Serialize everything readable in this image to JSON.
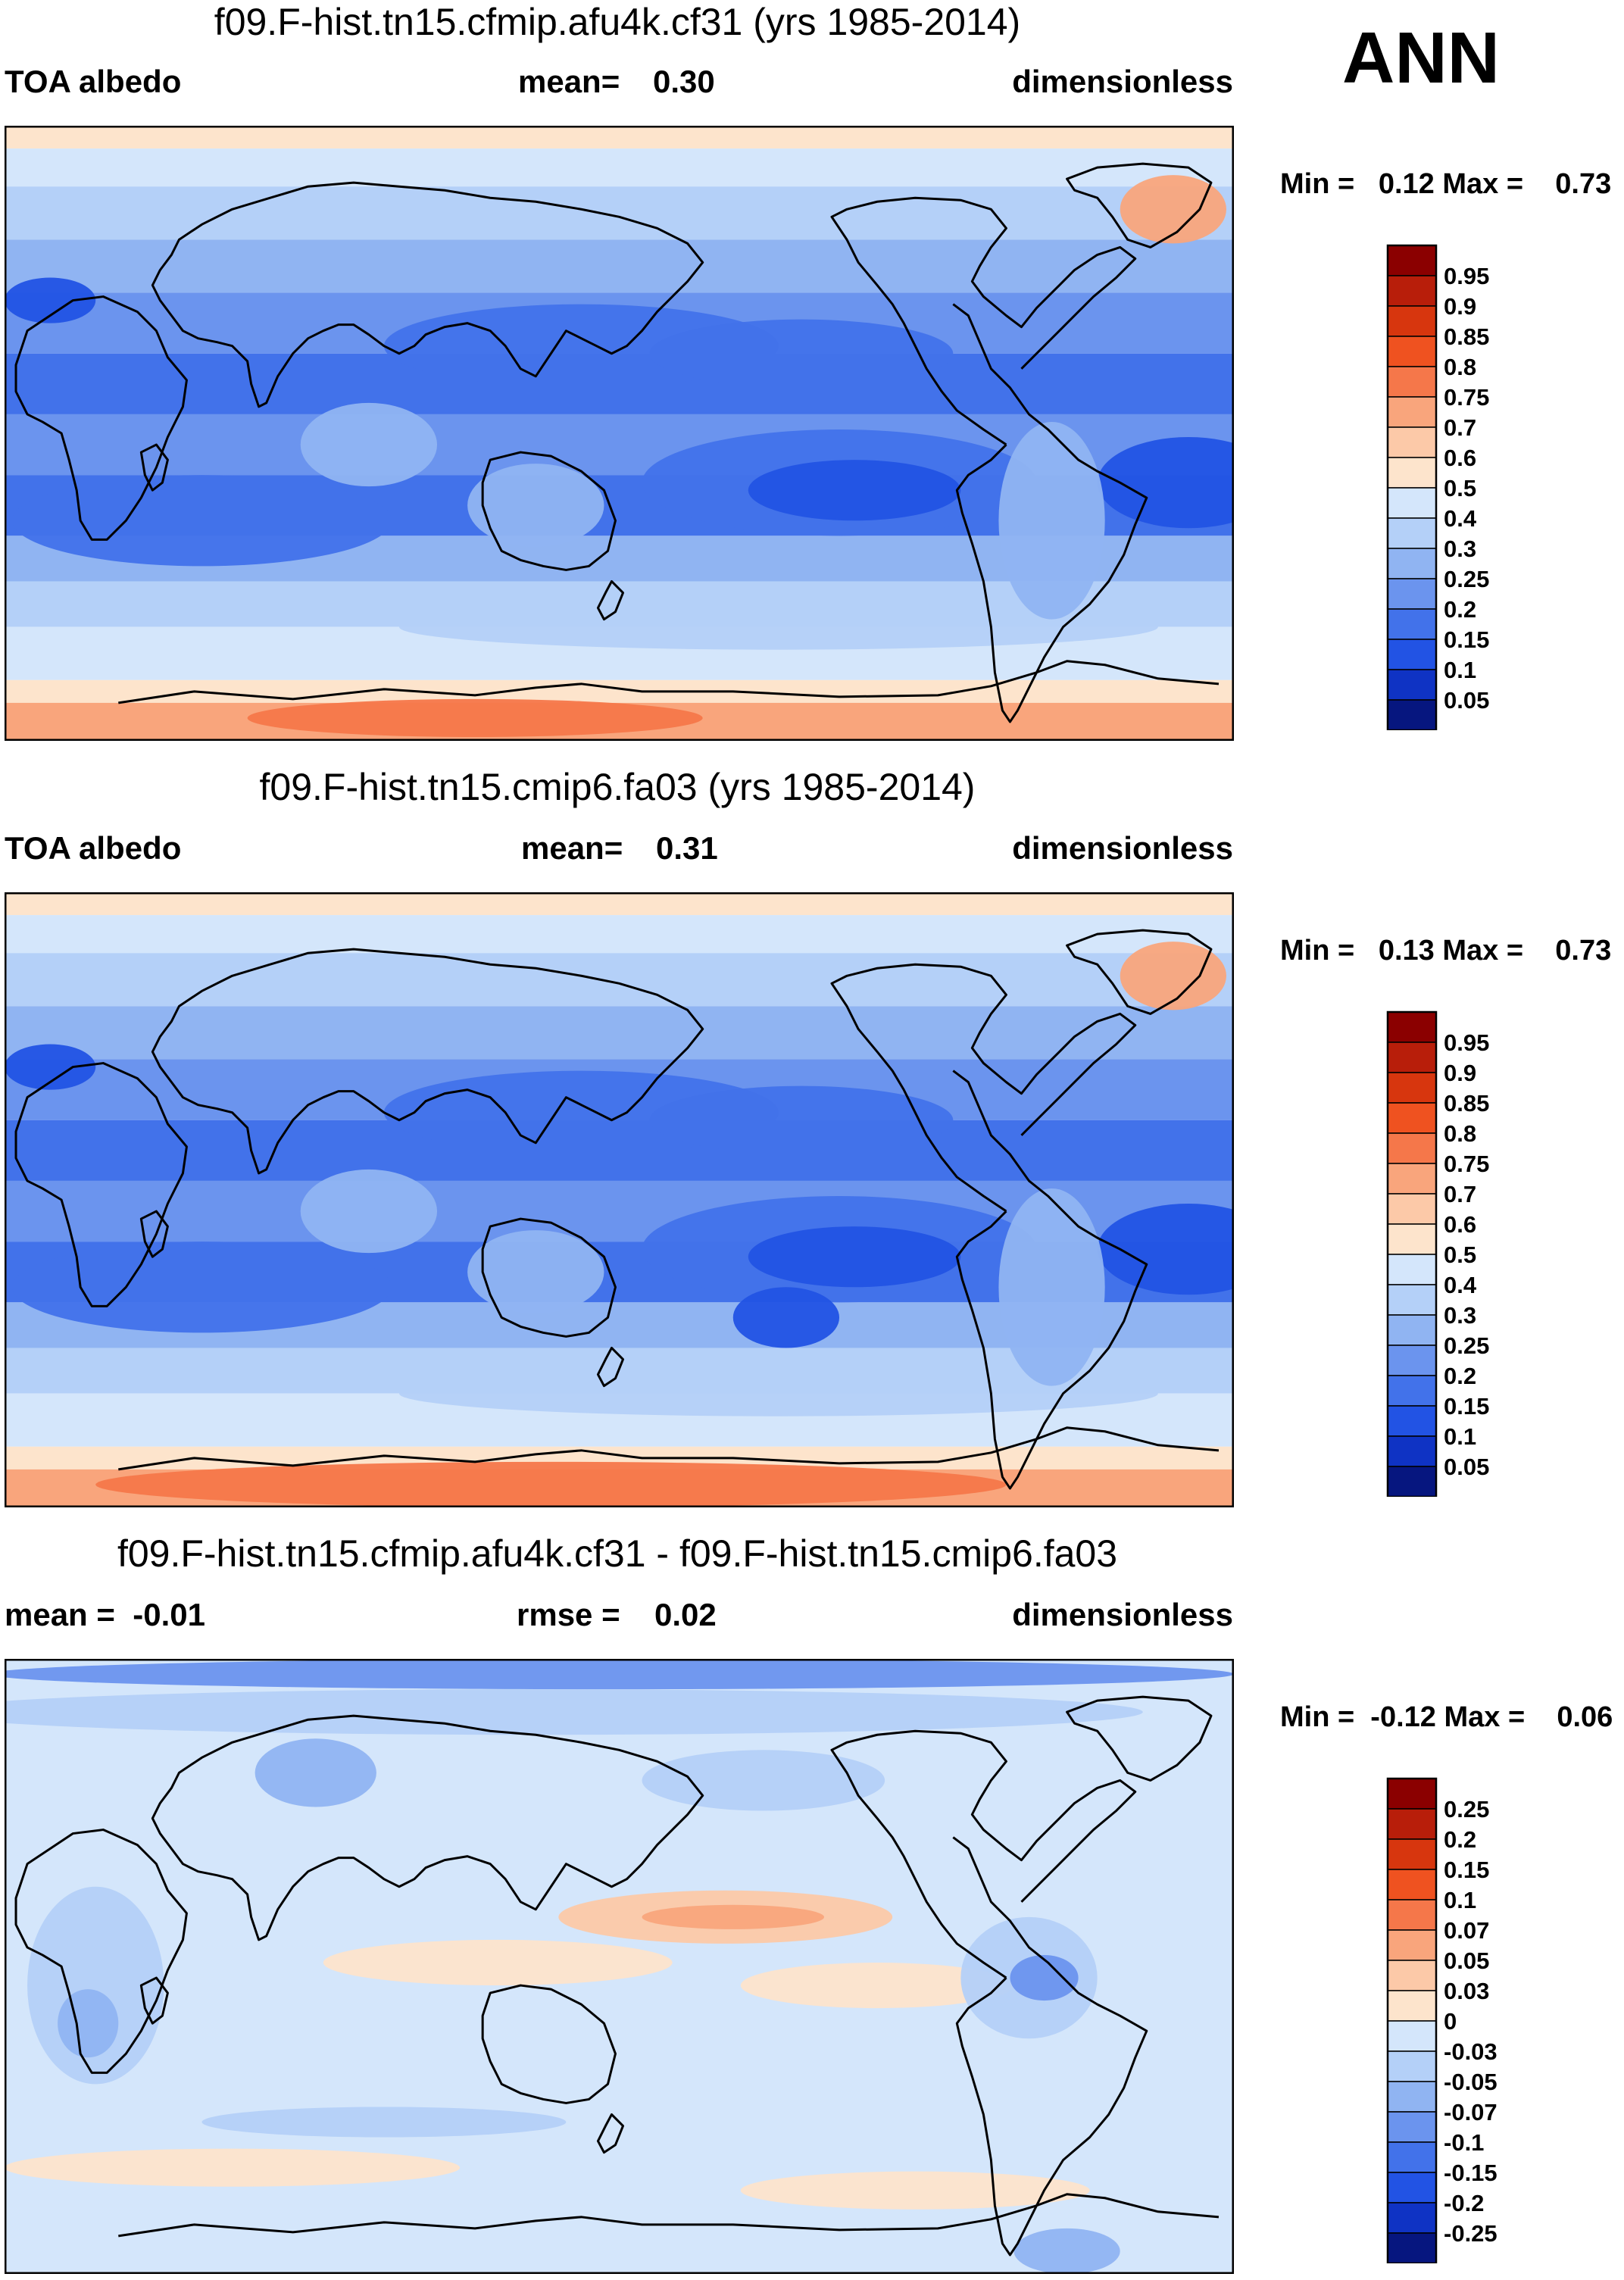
{
  "season": "ANN",
  "panels": [
    {
      "title": "f09.F-hist.tn15.cfmip.afu4k.cf31 (yrs 1985-2014)",
      "header_left": "TOA albedo",
      "header_center_label": "mean=",
      "header_center_value": "0.30",
      "header_right": "dimensionless",
      "minmax": "Min =   0.12 Max =    0.73",
      "palette": "abs",
      "colorbar": {
        "labels": [
          "0.95",
          "0.9",
          "0.85",
          "0.8",
          "0.75",
          "0.7",
          "0.6",
          "0.5",
          "0.4",
          "0.3",
          "0.25",
          "0.2",
          "0.15",
          "0.1",
          "0.05"
        ],
        "colors": [
          "#8b0000",
          "#b81e0a",
          "#d7360e",
          "#ef5220",
          "#f5774a",
          "#f9a57c",
          "#fcc9a8",
          "#fde4cc",
          "#d4e6fb",
          "#b4d0f8",
          "#90b4f2",
          "#6b94ee",
          "#4272ea",
          "#2253e4",
          "#0f33c4",
          "#06167f"
        ]
      }
    },
    {
      "title": "f09.F-hist.tn15.cmip6.fa03 (yrs 1985-2014)",
      "header_left": "TOA albedo",
      "header_center_label": "mean=",
      "header_center_value": "0.31",
      "header_right": "dimensionless",
      "minmax": "Min =   0.13 Max =    0.73",
      "palette": "abs",
      "colorbar": {
        "labels": [
          "0.95",
          "0.9",
          "0.85",
          "0.8",
          "0.75",
          "0.7",
          "0.6",
          "0.5",
          "0.4",
          "0.3",
          "0.25",
          "0.2",
          "0.15",
          "0.1",
          "0.05"
        ],
        "colors": [
          "#8b0000",
          "#b81e0a",
          "#d7360e",
          "#ef5220",
          "#f5774a",
          "#f9a57c",
          "#fcc9a8",
          "#fde4cc",
          "#d4e6fb",
          "#b4d0f8",
          "#90b4f2",
          "#6b94ee",
          "#4272ea",
          "#2253e4",
          "#0f33c4",
          "#06167f"
        ]
      }
    },
    {
      "title": "f09.F-hist.tn15.cfmip.afu4k.cf31 - f09.F-hist.tn15.cmip6.fa03",
      "header_left": "mean =  -0.01",
      "header_center_label": "rmse =",
      "header_center_value": "0.02",
      "header_right": "dimensionless",
      "minmax": "Min =  -0.12 Max =    0.06",
      "palette": "diff",
      "colorbar": {
        "labels": [
          "0.25",
          "0.2",
          "0.15",
          "0.1",
          "0.07",
          "0.05",
          "0.03",
          "0",
          "-0.03",
          "-0.05",
          "-0.07",
          "-0.1",
          "-0.15",
          "-0.2",
          "-0.25"
        ],
        "colors": [
          "#8b0000",
          "#b81e0a",
          "#d7360e",
          "#ef5220",
          "#f5774a",
          "#f9a57c",
          "#fcc9a8",
          "#fde4cc",
          "#d4e6fb",
          "#b4d0f8",
          "#90b4f2",
          "#6b94ee",
          "#4272ea",
          "#2253e4",
          "#0f33c4",
          "#06167f"
        ]
      }
    }
  ]
}
